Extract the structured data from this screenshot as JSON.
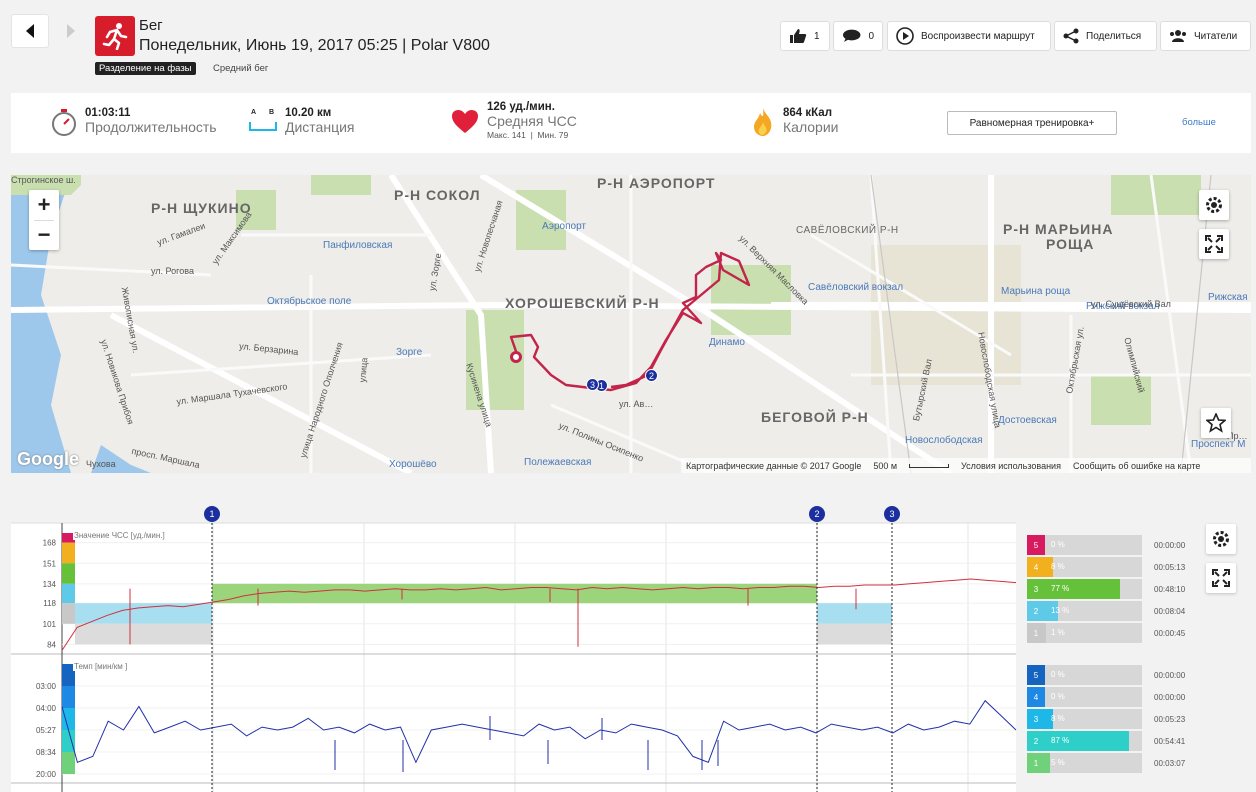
{
  "header": {
    "sport": "Бег",
    "datetime": "Понедельник, Июнь 19, 2017 05:25 | Polar V800",
    "phase_tag": "Разделение на фазы",
    "phase_name": "Средний бег",
    "likes": "1",
    "comments": "0",
    "replay_label": "Воспроизвести маршрут",
    "share_label": "Поделиться",
    "readers_label": "Читатели"
  },
  "stats": {
    "duration_value": "01:03:11",
    "duration_label": "Продолжительность",
    "distance_a": "A",
    "distance_b": "B",
    "distance_value": "10.20 км",
    "distance_label": "Дистанция",
    "hr_value": "126 уд./мин.",
    "hr_label": "Средняя ЧСС",
    "hr_max": "Макс. 141",
    "hr_min": "Мин. 79",
    "cal_value": "864 кКал",
    "cal_label": "Калории",
    "training_btn": "Равномерная тренировка+",
    "more_link": "больше"
  },
  "map": {
    "districts": [
      "Р-Н ЩУКИНО",
      "Р-Н СОКОЛ",
      "Р-Н АЭРОПОРТ",
      "ХОРОШЕВСКИЙ Р-Н",
      "Р-Н МАРЬИНА",
      "РОЩА",
      "БЕГОВОЙ Р-Н",
      "САВЁЛОВСКИЙ Р-Н"
    ],
    "metros": [
      "Панфиловская",
      "Аэропорт",
      "Октябрьское поле",
      "Зорге",
      "Динамо",
      "Савёловский вокзал",
      "Марьина роща",
      "Рижский вокзал",
      "Рижская",
      "Хорошёво",
      "Полежаевская",
      "Новослободская",
      "Достоевская",
      "Проспект М"
    ],
    "streets": [
      "Строгинское ш.",
      "ул. Гамалеи",
      "ул. Максимова",
      "ул. Рогова",
      "Живописная ул.",
      "ул. Новикова Прибоя",
      "ул. Берзарина",
      "ул. Маршала Тухачевского",
      "улица Народного Ополчения",
      "ул. Зорге",
      "ул. Новопесчаная",
      "Кусинена улица",
      "ул. Полины Осипенко",
      "просп. Маршала",
      "ул. Верхняя Масловка",
      "ул. Сущёвский Вал",
      "Бутырский Вал",
      "Новослободская улица",
      "Октябрьская ул.",
      "Олимпийский",
      "улица",
      "ул. Ав…",
      "Чухова",
      "Пр…"
    ],
    "zoom_in": "+",
    "zoom_out": "−",
    "google": "Google",
    "attribution": "Картографические данные © 2017 Google",
    "scale": "500 м",
    "terms": "Условия использования",
    "report": "Сообщить об ошибке на карте",
    "laps": [
      "1",
      "2",
      "3"
    ]
  },
  "chart_data": [
    {
      "type": "line",
      "title": "Значение ЧСС [уд./мин.]",
      "ylabel": "уд./мин.",
      "yticks": [
        "168",
        "151",
        "134",
        "118",
        "101",
        "84"
      ],
      "ylim": [
        76,
        176
      ],
      "laps": [
        "1",
        "2",
        "3"
      ],
      "series": [
        {
          "values": [
            79,
            98,
            103,
            108,
            112,
            114,
            115,
            116,
            115,
            117,
            119,
            121,
            124,
            126,
            127,
            128,
            127,
            128,
            129,
            129,
            128,
            129,
            130,
            129,
            129,
            130,
            129,
            130,
            131,
            129,
            130,
            131,
            131,
            130,
            129,
            131,
            130,
            131,
            130,
            129,
            130,
            131,
            130,
            131,
            131,
            130,
            131,
            131,
            132,
            132,
            131,
            132,
            132,
            133,
            133,
            133,
            134,
            135,
            136,
            137,
            138,
            137,
            136,
            135
          ]
        }
      ],
      "zones": [
        {
          "zone": "5",
          "pct": "0 %",
          "time": "00:00:00",
          "fraction": 0.0
        },
        {
          "zone": "4",
          "pct": "8 %",
          "time": "00:05:13",
          "fraction": 0.08
        },
        {
          "zone": "3",
          "pct": "77 %",
          "time": "00:48:10",
          "fraction": 0.77
        },
        {
          "zone": "2",
          "pct": "13 %",
          "time": "00:08:04",
          "fraction": 0.13
        },
        {
          "zone": "1",
          "pct": "1 %",
          "time": "00:00:45",
          "fraction": 0.01
        }
      ]
    },
    {
      "type": "line",
      "title": "Темп [мин/км ]",
      "ylabel": "мин/км",
      "yticks": [
        "03:00",
        "04:00",
        "05:27",
        "08:34",
        "20:00"
      ],
      "laps": [
        "1",
        "2",
        "3"
      ],
      "series": [
        {
          "values": [
            3.3,
            1.4,
            1.6,
            2.8,
            2.5,
            3.3,
            2.4,
            2.6,
            2.8,
            2.5,
            2.6,
            2.7,
            2.3,
            2.6,
            2.5,
            2.6,
            2.9,
            2.5,
            2.6,
            2.4,
            2.7,
            2.5,
            2.6,
            1.4,
            2.5,
            2.6,
            2.7,
            2.6,
            2.5,
            2.4,
            2.3,
            2.7,
            2.5,
            2.6,
            2.2,
            2.5,
            2.4,
            2.7,
            2.6,
            2.5,
            2.3,
            1.6,
            1.4,
            2.8,
            2.5,
            2.6,
            2.7,
            2.5,
            2.6,
            2.4,
            2.7,
            2.6,
            2.5,
            2.6,
            2.4,
            2.7,
            2.5,
            2.6,
            2.8,
            2.7,
            3.5,
            3.0,
            2.5
          ]
        }
      ],
      "zones": [
        {
          "zone": "5",
          "pct": "0 %",
          "time": "00:00:00",
          "fraction": 0.0
        },
        {
          "zone": "4",
          "pct": "0 %",
          "time": "00:00:00",
          "fraction": 0.0
        },
        {
          "zone": "3",
          "pct": "8 %",
          "time": "00:05:23",
          "fraction": 0.08
        },
        {
          "zone": "2",
          "pct": "87 %",
          "time": "00:54:41",
          "fraction": 0.87
        },
        {
          "zone": "1",
          "pct": "5 %",
          "time": "00:03:07",
          "fraction": 0.05
        }
      ]
    }
  ],
  "colors": {
    "hr_z5": "#d81b60",
    "hr_z4": "#f2b01e",
    "hr_z3": "#66c13a",
    "hr_z2": "#5fc9e8",
    "hr_z1": "#c8c8c8",
    "pace_z5": "#1565c0",
    "pace_z4": "#1e88e5",
    "pace_z3": "#1eb8e8",
    "pace_z2": "#2ecfc8",
    "pace_z1": "#6fd17a",
    "route": "#c2244a",
    "hr_line": "#d03040",
    "pace_line": "#2230a8"
  }
}
